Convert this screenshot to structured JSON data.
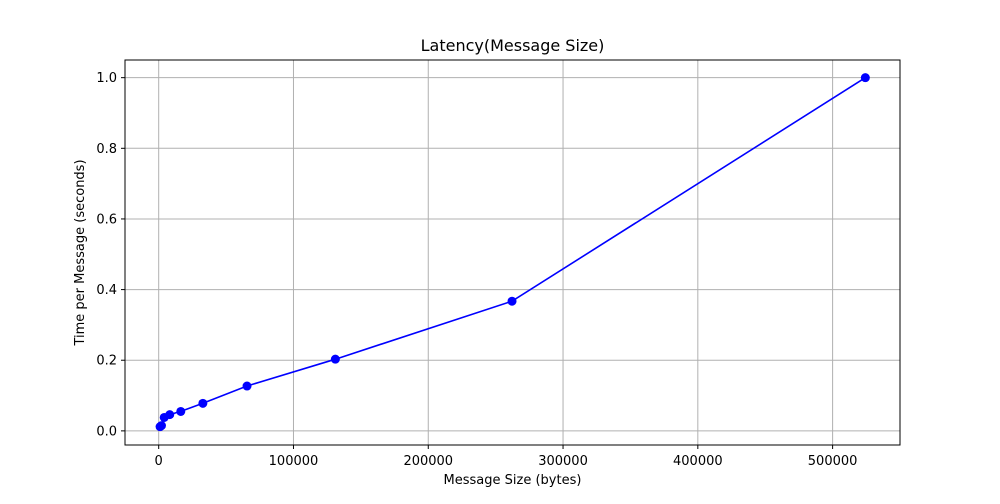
{
  "chart_data": {
    "type": "line",
    "title": "Latency(Message Size)",
    "xlabel": "Message Size (bytes)",
    "ylabel": "Time per Message (seconds)",
    "xlim": [
      -25000,
      550000
    ],
    "ylim": [
      -0.04,
      1.05
    ],
    "x_ticks": [
      0,
      100000,
      200000,
      300000,
      400000,
      500000
    ],
    "y_ticks": [
      0.0,
      0.2,
      0.4,
      0.6,
      0.8,
      1.0
    ],
    "x_tick_labels": [
      "0",
      "100000",
      "200000",
      "300000",
      "400000",
      "500000"
    ],
    "y_tick_labels": [
      "0.0",
      "0.2",
      "0.4",
      "0.6",
      "0.8",
      "1.0"
    ],
    "grid": true,
    "series": [
      {
        "color": "#0000ff",
        "marker": "circle",
        "x": [
          1024,
          2048,
          4096,
          8192,
          16384,
          32768,
          65536,
          131072,
          262144,
          524288
        ],
        "y": [
          0.012,
          0.015,
          0.038,
          0.046,
          0.055,
          0.078,
          0.127,
          0.203,
          0.367,
          1.0
        ]
      }
    ]
  }
}
